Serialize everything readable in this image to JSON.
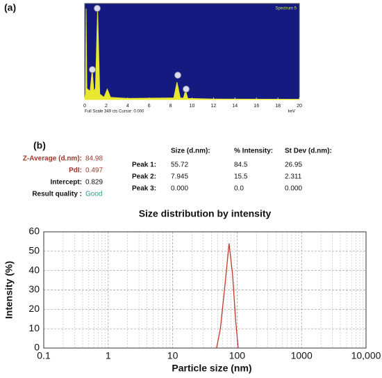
{
  "panel_labels": [
    "(a)",
    "(b)"
  ],
  "summary": [
    {
      "label": "Z-Average (d.nm):",
      "value": "84.98"
    },
    {
      "label": "PdI:",
      "value": "0.497"
    },
    {
      "label": "Intercept:",
      "value": "0.829"
    },
    {
      "label": "Result quality :",
      "value": "Good"
    }
  ],
  "table": {
    "columns": [
      "Size (d.nm):",
      "% Intensity:",
      "St Dev (d.nm):"
    ],
    "rows": [
      [
        "Peak 1:",
        "55.72",
        "84.5",
        "26.95"
      ],
      [
        "Peak 2:",
        "7.945",
        "15.5",
        "2.311"
      ],
      [
        "Peak 3:",
        "0.000",
        "0.0",
        "0.000"
      ]
    ]
  },
  "chart_data": [
    {
      "type": "area",
      "legend": "Spectrum 5",
      "xlabel": "keV",
      "footer": "Full Scale 349 cts Cursor: 0.000",
      "x": [
        0,
        0.08,
        0.13,
        0.2,
        0.5,
        0.7,
        0.85,
        1.0,
        1.2,
        1.4,
        1.8,
        2.1,
        2.4,
        4,
        8.3,
        8.6,
        8.9,
        9.2,
        9.4,
        9.6,
        12,
        20
      ],
      "values": [
        5,
        20,
        330,
        40,
        30,
        109,
        30,
        40,
        331,
        20,
        8,
        38,
        8,
        4,
        6,
        63,
        6,
        5,
        33,
        4,
        2,
        1
      ],
      "color": "#e8e830",
      "background": "#141a80",
      "xlim": [
        0,
        20
      ],
      "ylim": [
        0,
        349
      ],
      "xticks": [
        0,
        2,
        4,
        6,
        8,
        10,
        12,
        14,
        16,
        18,
        20
      ]
    },
    {
      "type": "line",
      "title": "Size distribution by intensity",
      "xlabel": "Particle size (nm)",
      "ylabel": "Intensity (%)",
      "x": [
        48,
        55,
        65,
        75,
        85,
        95,
        104
      ],
      "values": [
        0,
        10,
        33,
        54,
        38,
        14,
        0
      ],
      "color": "#c0392b",
      "log_x": true,
      "grid": true,
      "xlim": [
        0.1,
        10000
      ],
      "xticks": [
        0.1,
        1,
        10,
        100,
        1000,
        {
          "value": 10000,
          "label": "10,000"
        }
      ],
      "ylim": [
        0,
        60
      ],
      "yticks": [
        0,
        10,
        20,
        30,
        40,
        50,
        60
      ]
    }
  ]
}
